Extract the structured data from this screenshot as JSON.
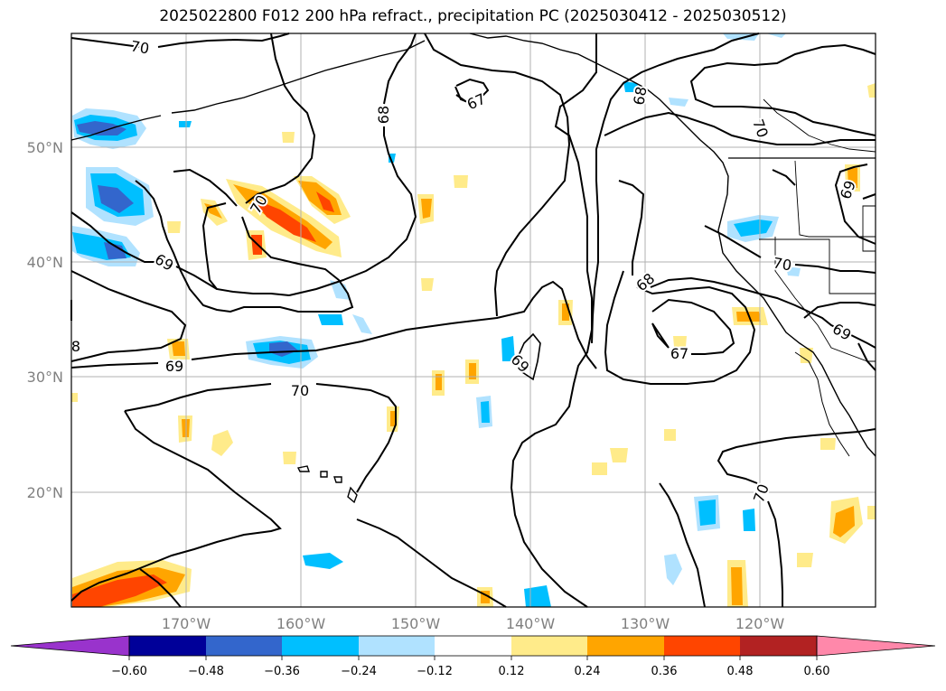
{
  "title": "2025022800 F012 200 hPa refract., precipitation PC (2025030412 - 2025030512)",
  "axes": {
    "lat_labels": [
      "50°N",
      "40°N",
      "30°N",
      "20°N"
    ],
    "lon_labels": [
      "170°W",
      "160°W",
      "150°W",
      "140°W",
      "130°W",
      "120°W"
    ]
  },
  "colorbar": {
    "tick_labels": [
      "−0.60",
      "−0.48",
      "−0.36",
      "−0.24",
      "−0.12",
      "0.12",
      "0.24",
      "0.36",
      "0.48",
      "0.60"
    ],
    "colors": {
      "under": "#9933cc",
      "bins": [
        "#000099",
        "#3366cc",
        "#00bfff",
        "#b0e2ff",
        "#ffffff",
        "#ffeb8a",
        "#ffa500",
        "#ff4500",
        "#b22222"
      ],
      "over": "#ff88aa"
    }
  },
  "contour_labels": [
    "70",
    "67",
    "68",
    "69",
    "70",
    "68",
    "70",
    "69",
    "69",
    "70",
    "69",
    "67",
    "68",
    "70",
    "69",
    "70",
    "8"
  ],
  "colors": {
    "grid": "#b0b0b0",
    "contour": "#000000",
    "land": "#000000"
  }
}
